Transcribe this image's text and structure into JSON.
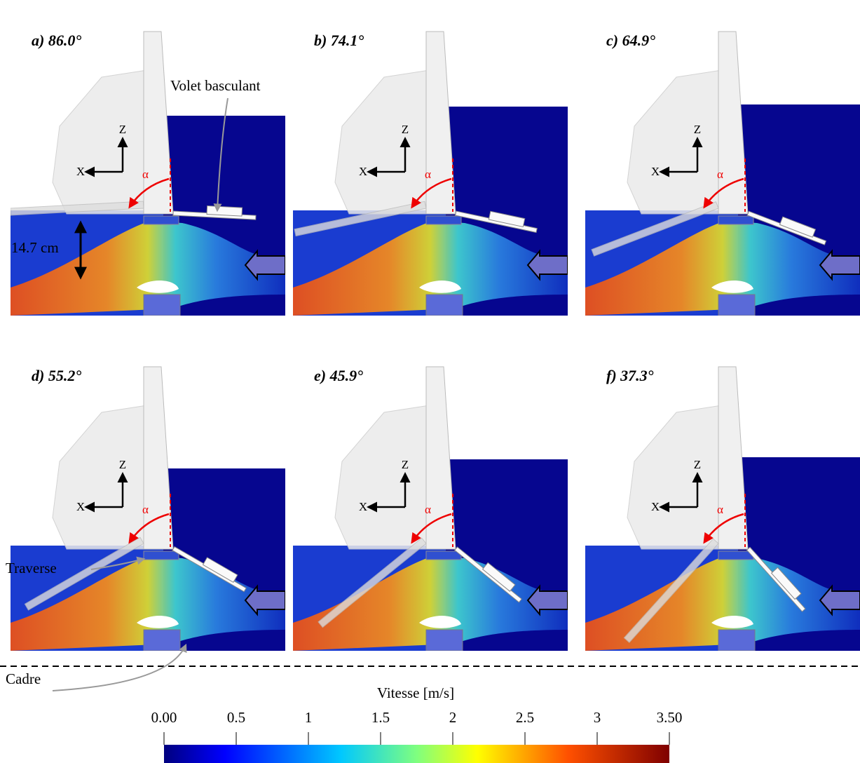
{
  "panels": [
    {
      "label": "a) 86.0°",
      "z": "Z",
      "x": "X",
      "alpha": "α"
    },
    {
      "label": "b) 74.1°",
      "z": "Z",
      "x": "X",
      "alpha": "α"
    },
    {
      "label": "c) 64.9°",
      "z": "Z",
      "x": "X",
      "alpha": "α"
    },
    {
      "label": "d) 55.2°",
      "z": "Z",
      "x": "X",
      "alpha": "α"
    },
    {
      "label": "e) 45.9°",
      "z": "Z",
      "x": "X",
      "alpha": "α"
    },
    {
      "label": "f) 37.3°",
      "z": "Z",
      "x": "X",
      "alpha": "α"
    }
  ],
  "annotations": {
    "flap": "Volet basculant",
    "height": "14.7 cm",
    "crossbeam": "Traverse",
    "frame": "Cadre"
  },
  "colorbar": {
    "title": "Vitesse [m/s]",
    "lim": [
      0,
      3.5
    ],
    "ticks": [
      {
        "value": 0,
        "label": "0.00"
      },
      0.5,
      1,
      1.5,
      2,
      2.5,
      3,
      {
        "value": 3.5,
        "label": "3.50"
      }
    ]
  }
}
